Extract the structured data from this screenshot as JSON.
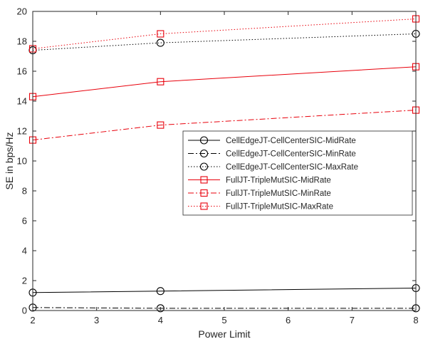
{
  "chart_data": {
    "type": "line",
    "xlabel": "Power Limit",
    "ylabel": "SE in bps/Hz",
    "xlim": [
      2,
      8
    ],
    "ylim": [
      0,
      20
    ],
    "xticks": [
      "2",
      "3",
      "4",
      "5",
      "6",
      "7",
      "8"
    ],
    "yticks": [
      "0",
      "2",
      "4",
      "6",
      "8",
      "10",
      "12",
      "14",
      "16",
      "18",
      "20"
    ],
    "grid": false,
    "legend_position": "center-right",
    "x": [
      2,
      4,
      8
    ],
    "series": [
      {
        "name": "CellEdgeJT-CellCenterSIC-MidRate",
        "values": [
          1.2,
          1.3,
          1.5
        ],
        "color": "#000000",
        "line_style": "solid",
        "marker": "circle"
      },
      {
        "name": "CellEdgeJT-CellCenterSIC-MinRate",
        "values": [
          0.2,
          0.15,
          0.15
        ],
        "color": "#000000",
        "line_style": "dashdot",
        "marker": "circle"
      },
      {
        "name": "CellEdgeJT-CellCenterSIC-MaxRate",
        "values": [
          17.4,
          17.9,
          18.5
        ],
        "color": "#000000",
        "line_style": "dotted",
        "marker": "circle"
      },
      {
        "name": "FullJT-TripleMutSIC-MidRate",
        "values": [
          14.3,
          15.3,
          16.3
        ],
        "color": "#e8000b",
        "line_style": "solid",
        "marker": "square"
      },
      {
        "name": "FullJT-TripleMutSIC-MinRate",
        "values": [
          11.4,
          12.4,
          13.4
        ],
        "color": "#e8000b",
        "line_style": "dashdot",
        "marker": "square"
      },
      {
        "name": "FullJT-TripleMutSIC-MaxRate",
        "values": [
          17.5,
          18.5,
          19.5
        ],
        "color": "#e8000b",
        "line_style": "dotted",
        "marker": "square"
      }
    ]
  }
}
